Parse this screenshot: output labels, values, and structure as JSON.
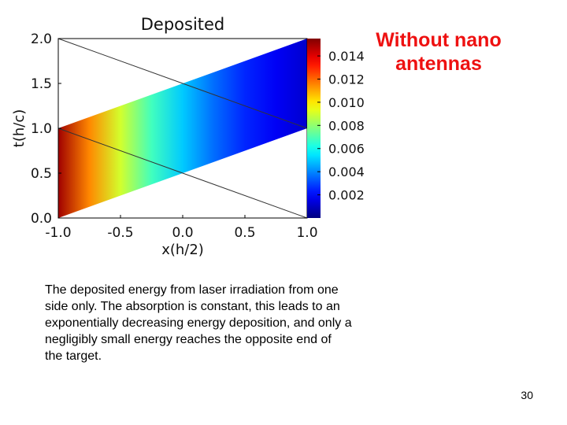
{
  "chart_data": {
    "type": "heatmap",
    "title": "Deposited",
    "xlabel": "x(h/2)",
    "ylabel": "t(h/c)",
    "xlim": [
      -1.0,
      1.0
    ],
    "ylim": [
      0.0,
      2.0
    ],
    "x_ticks": [
      "-1.0",
      "-0.5",
      "0.0",
      "0.5",
      "1.0"
    ],
    "y_ticks": [
      "0.0",
      "0.5",
      "1.0",
      "1.5",
      "2.0"
    ],
    "colorbar": {
      "range": [
        0.0,
        0.0155
      ],
      "ticks": [
        "0.002",
        "0.004",
        "0.006",
        "0.008",
        "0.010",
        "0.012",
        "0.014"
      ],
      "colormap": "jet"
    },
    "band": {
      "lower_edge": [
        [
          -1.0,
          0.0
        ],
        [
          1.0,
          1.0
        ]
      ],
      "upper_edge": [
        [
          -1.0,
          1.0
        ],
        [
          1.0,
          2.0
        ]
      ],
      "values_along_x": [
        {
          "x": -1.0,
          "value": 0.015
        },
        {
          "x": -0.75,
          "value": 0.0115
        },
        {
          "x": -0.5,
          "value": 0.009
        },
        {
          "x": -0.25,
          "value": 0.0068
        },
        {
          "x": 0.0,
          "value": 0.005
        },
        {
          "x": 0.25,
          "value": 0.0036
        },
        {
          "x": 0.5,
          "value": 0.0025
        },
        {
          "x": 0.75,
          "value": 0.0018
        },
        {
          "x": 1.0,
          "value": 0.0012
        }
      ]
    },
    "characteristic_lines": [
      [
        [
          -1.0,
          2.0
        ],
        [
          1.0,
          1.0
        ]
      ],
      [
        [
          -1.0,
          1.0
        ],
        [
          1.0,
          0.0
        ]
      ]
    ]
  },
  "side_title": "Without nano\nantennas",
  "caption": "The deposited energy from laser irradiation from one side only. The absorption is constant, this leads to an exponentially decreasing energy deposition, and only a negligibly small energy reaches the opposite end of the target.",
  "page_number": "30",
  "colors": {
    "side_title": "#ee1111",
    "axis": "#000000",
    "characteristic_line": "#333333"
  }
}
